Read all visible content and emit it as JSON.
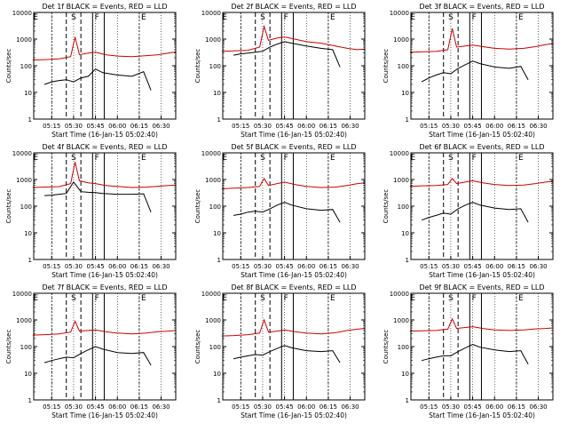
{
  "chart_data": [
    {
      "type": "line",
      "title": "Det 1f BLACK = Events, RED = LLD",
      "xlabel": "Start Time (16-Jan-15 05:02:40)",
      "ylabel": "Counts/sec",
      "ylog": true,
      "ylim": [
        1,
        10000
      ],
      "xlim": [
        "05:02:40",
        "06:40:00"
      ],
      "x_ticks": [
        "05:15",
        "05:30",
        "05:45",
        "06:00",
        "06:15",
        "06:30"
      ],
      "y_ticks": [
        "1",
        "10",
        "100",
        "1000",
        "10000"
      ],
      "region_labels": [
        "E",
        "S",
        "F",
        "E"
      ],
      "series": [
        {
          "name": "RED",
          "color": "#d00000",
          "x": [
            "05:02",
            "05:10",
            "05:20",
            "05:28",
            "05:31",
            "05:34",
            "05:40",
            "05:45",
            "05:52",
            "06:00",
            "06:10",
            "06:20",
            "06:28",
            "06:35",
            "06:40"
          ],
          "y": [
            165,
            170,
            180,
            220,
            1200,
            260,
            300,
            320,
            260,
            230,
            220,
            240,
            260,
            300,
            330
          ]
        },
        {
          "name": "BLACK",
          "color": "#000000",
          "x": [
            "05:10",
            "05:15",
            "05:20",
            "05:25",
            "05:30",
            "05:35",
            "05:40",
            "05:45",
            "05:50",
            "06:00",
            "06:10",
            "06:18",
            "06:23"
          ],
          "y": [
            20,
            25,
            28,
            30,
            25,
            35,
            40,
            75,
            55,
            45,
            40,
            60,
            12
          ]
        }
      ]
    },
    {
      "type": "line",
      "title": "Det 2f BLACK = Events, RED = LLD",
      "xlabel": "Start Time (16-Jan-15 05:02:40)",
      "ylabel": "Counts/sec",
      "ylog": true,
      "ylim": [
        1,
        10000
      ],
      "xlim": [
        "05:02:40",
        "06:40:00"
      ],
      "x_ticks": [
        "05:15",
        "05:30",
        "05:45",
        "06:00",
        "06:15",
        "06:30"
      ],
      "y_ticks": [
        "1",
        "10",
        "100",
        "1000",
        "10000"
      ],
      "region_labels": [
        "E",
        "S",
        "F",
        "E"
      ],
      "series": [
        {
          "name": "RED",
          "color": "#d00000",
          "x": [
            "05:02",
            "05:10",
            "05:20",
            "05:28",
            "05:31",
            "05:34",
            "05:40",
            "05:45",
            "05:52",
            "06:00",
            "06:10",
            "06:20",
            "06:28",
            "06:35",
            "06:40"
          ],
          "y": [
            350,
            360,
            380,
            500,
            3000,
            900,
            1100,
            1200,
            1000,
            800,
            700,
            550,
            450,
            400,
            420
          ]
        },
        {
          "name": "BLACK",
          "color": "#000000",
          "x": [
            "05:10",
            "05:15",
            "05:20",
            "05:25",
            "05:30",
            "05:35",
            "05:40",
            "05:45",
            "05:50",
            "06:00",
            "06:10",
            "06:18",
            "06:23"
          ],
          "y": [
            250,
            280,
            300,
            320,
            350,
            500,
            650,
            800,
            700,
            550,
            450,
            400,
            90
          ]
        }
      ]
    },
    {
      "type": "line",
      "title": "Det 3f BLACK = Events, RED = LLD",
      "xlabel": "Start Time (16-Jan-15 05:02:40)",
      "ylabel": "Counts/sec",
      "ylog": true,
      "ylim": [
        1,
        10000
      ],
      "xlim": [
        "05:02:40",
        "06:40:00"
      ],
      "x_ticks": [
        "05:15",
        "05:30",
        "05:45",
        "06:00",
        "06:15",
        "06:30"
      ],
      "y_ticks": [
        "1",
        "10",
        "100",
        "1000",
        "10000"
      ],
      "region_labels": [
        "E",
        "S",
        "F",
        "E"
      ],
      "series": [
        {
          "name": "RED",
          "color": "#d00000",
          "x": [
            "05:02",
            "05:10",
            "05:20",
            "05:28",
            "05:31",
            "05:34",
            "05:40",
            "05:45",
            "05:52",
            "06:00",
            "06:10",
            "06:20",
            "06:28",
            "06:35",
            "06:40"
          ],
          "y": [
            320,
            330,
            350,
            400,
            2500,
            500,
            550,
            600,
            520,
            450,
            420,
            450,
            520,
            620,
            680
          ]
        },
        {
          "name": "BLACK",
          "color": "#000000",
          "x": [
            "05:10",
            "05:15",
            "05:20",
            "05:25",
            "05:30",
            "05:35",
            "05:40",
            "05:45",
            "05:50",
            "06:00",
            "06:10",
            "06:18",
            "06:23"
          ],
          "y": [
            25,
            35,
            45,
            55,
            50,
            80,
            110,
            150,
            120,
            90,
            80,
            95,
            30
          ]
        }
      ]
    },
    {
      "type": "line",
      "title": "Det 4f BLACK = Events, RED = LLD",
      "xlabel": "Start Time (16-Jan-15 05:02:40)",
      "ylabel": "Counts/sec",
      "ylog": true,
      "ylim": [
        1,
        10000
      ],
      "xlim": [
        "05:02:40",
        "06:40:00"
      ],
      "x_ticks": [
        "05:15",
        "05:30",
        "05:45",
        "06:00",
        "06:15",
        "06:30"
      ],
      "y_ticks": [
        "1",
        "10",
        "100",
        "1000",
        "10000"
      ],
      "region_labels": [
        "E",
        "S",
        "F",
        "E"
      ],
      "series": [
        {
          "name": "RED",
          "color": "#d00000",
          "x": [
            "05:02",
            "05:10",
            "05:20",
            "05:28",
            "05:31",
            "05:34",
            "05:40",
            "05:45",
            "05:52",
            "06:00",
            "06:10",
            "06:20",
            "06:28",
            "06:35",
            "06:40"
          ],
          "y": [
            500,
            520,
            540,
            700,
            4500,
            900,
            750,
            700,
            600,
            550,
            500,
            520,
            560,
            600,
            620
          ]
        },
        {
          "name": "BLACK",
          "color": "#000000",
          "x": [
            "05:10",
            "05:15",
            "05:20",
            "05:25",
            "05:30",
            "05:35",
            "05:40",
            "05:45",
            "05:50",
            "06:00",
            "06:10",
            "06:18",
            "06:23"
          ],
          "y": [
            250,
            260,
            280,
            300,
            800,
            350,
            330,
            320,
            300,
            280,
            280,
            290,
            60
          ]
        }
      ]
    },
    {
      "type": "line",
      "title": "Det 5f BLACK = Events, RED = LLD",
      "xlabel": "Start Time (16-Jan-15 05:02:40)",
      "ylabel": "Counts/sec",
      "ylog": true,
      "ylim": [
        1,
        10000
      ],
      "xlim": [
        "05:02:40",
        "06:40:00"
      ],
      "x_ticks": [
        "05:15",
        "05:30",
        "05:45",
        "06:00",
        "06:15",
        "06:30"
      ],
      "y_ticks": [
        "1",
        "10",
        "100",
        "1000",
        "10000"
      ],
      "region_labels": [
        "E",
        "S",
        "F",
        "E"
      ],
      "series": [
        {
          "name": "RED",
          "color": "#d00000",
          "x": [
            "05:02",
            "05:10",
            "05:20",
            "05:28",
            "05:31",
            "05:34",
            "05:40",
            "05:45",
            "05:52",
            "06:00",
            "06:10",
            "06:20",
            "06:28",
            "06:35",
            "06:40"
          ],
          "y": [
            450,
            470,
            500,
            550,
            1100,
            600,
            700,
            800,
            650,
            550,
            500,
            520,
            600,
            700,
            750
          ]
        },
        {
          "name": "BLACK",
          "color": "#000000",
          "x": [
            "05:10",
            "05:15",
            "05:20",
            "05:25",
            "05:30",
            "05:35",
            "05:40",
            "05:45",
            "05:50",
            "06:00",
            "06:10",
            "06:18",
            "06:23"
          ],
          "y": [
            45,
            50,
            60,
            65,
            60,
            80,
            110,
            140,
            110,
            80,
            70,
            75,
            25
          ]
        }
      ]
    },
    {
      "type": "line",
      "title": "Det 6f BLACK = Events, RED = LLD",
      "xlabel": "Start Time (16-Jan-15 05:02:40)",
      "ylabel": "Counts/sec",
      "ylog": true,
      "ylim": [
        1,
        10000
      ],
      "xlim": [
        "05:02:40",
        "06:40:00"
      ],
      "x_ticks": [
        "05:15",
        "05:30",
        "05:45",
        "06:00",
        "06:15",
        "06:30"
      ],
      "y_ticks": [
        "1",
        "10",
        "100",
        "1000",
        "10000"
      ],
      "region_labels": [
        "E",
        "S",
        "F",
        "E"
      ],
      "series": [
        {
          "name": "RED",
          "color": "#d00000",
          "x": [
            "05:02",
            "05:10",
            "05:20",
            "05:28",
            "05:31",
            "05:34",
            "05:40",
            "05:45",
            "05:52",
            "06:00",
            "06:10",
            "06:20",
            "06:28",
            "06:35",
            "06:40"
          ],
          "y": [
            550,
            580,
            600,
            650,
            1100,
            700,
            800,
            900,
            750,
            650,
            600,
            620,
            700,
            800,
            850
          ]
        },
        {
          "name": "BLACK",
          "color": "#000000",
          "x": [
            "05:10",
            "05:15",
            "05:20",
            "05:25",
            "05:30",
            "05:35",
            "05:40",
            "05:45",
            "05:50",
            "06:00",
            "06:10",
            "06:18",
            "06:23"
          ],
          "y": [
            30,
            38,
            45,
            55,
            50,
            80,
            110,
            140,
            110,
            85,
            75,
            80,
            25
          ]
        }
      ]
    },
    {
      "type": "line",
      "title": "Det 7f BLACK = Events, RED = LLD",
      "xlabel": "Start Time (16-Jan-15 05:02:40)",
      "ylabel": "Counts/sec",
      "ylog": true,
      "ylim": [
        1,
        10000
      ],
      "xlim": [
        "05:02:40",
        "06:40:00"
      ],
      "x_ticks": [
        "05:15",
        "05:30",
        "05:45",
        "06:00",
        "06:15",
        "06:30"
      ],
      "y_ticks": [
        "1",
        "10",
        "100",
        "1000",
        "10000"
      ],
      "region_labels": [
        "E",
        "S",
        "F",
        "E"
      ],
      "series": [
        {
          "name": "RED",
          "color": "#d00000",
          "x": [
            "05:02",
            "05:10",
            "05:20",
            "05:28",
            "05:31",
            "05:34",
            "05:40",
            "05:45",
            "05:52",
            "06:00",
            "06:10",
            "06:20",
            "06:28",
            "06:35",
            "06:40"
          ],
          "y": [
            270,
            280,
            300,
            350,
            900,
            380,
            400,
            420,
            360,
            320,
            300,
            320,
            360,
            380,
            400
          ]
        },
        {
          "name": "BLACK",
          "color": "#000000",
          "x": [
            "05:10",
            "05:15",
            "05:20",
            "05:25",
            "05:30",
            "05:35",
            "05:40",
            "05:45",
            "05:50",
            "06:00",
            "06:10",
            "06:18",
            "06:23"
          ],
          "y": [
            25,
            30,
            35,
            40,
            38,
            55,
            75,
            100,
            80,
            60,
            55,
            60,
            20
          ]
        }
      ]
    },
    {
      "type": "line",
      "title": "Det 8f BLACK = Events, RED = LLD",
      "xlabel": "Start Time (16-Jan-15 05:02:40)",
      "ylabel": "Counts/sec",
      "ylog": true,
      "ylim": [
        1,
        10000
      ],
      "xlim": [
        "05:02:40",
        "06:40:00"
      ],
      "x_ticks": [
        "05:15",
        "05:30",
        "05:45",
        "06:00",
        "06:15",
        "06:30"
      ],
      "y_ticks": [
        "1",
        "10",
        "100",
        "1000",
        "10000"
      ],
      "region_labels": [
        "E",
        "S",
        "F",
        "E"
      ],
      "series": [
        {
          "name": "RED",
          "color": "#d00000",
          "x": [
            "05:02",
            "05:10",
            "05:20",
            "05:28",
            "05:31",
            "05:34",
            "05:40",
            "05:45",
            "05:52",
            "06:00",
            "06:10",
            "06:20",
            "06:28",
            "06:35",
            "06:40"
          ],
          "y": [
            250,
            260,
            280,
            320,
            1000,
            350,
            380,
            420,
            360,
            320,
            300,
            330,
            400,
            450,
            480
          ]
        },
        {
          "name": "BLACK",
          "color": "#000000",
          "x": [
            "05:10",
            "05:15",
            "05:20",
            "05:25",
            "05:30",
            "05:35",
            "05:40",
            "05:45",
            "05:50",
            "06:00",
            "06:10",
            "06:18",
            "06:23"
          ],
          "y": [
            35,
            40,
            45,
            50,
            48,
            65,
            85,
            110,
            90,
            70,
            65,
            70,
            25
          ]
        }
      ]
    },
    {
      "type": "line",
      "title": "Det 9f BLACK = Events, RED = LLD",
      "xlabel": "Start Time (16-Jan-15 05:02:40)",
      "ylabel": "Counts/sec",
      "ylog": true,
      "ylim": [
        1,
        10000
      ],
      "xlim": [
        "05:02:40",
        "06:40:00"
      ],
      "x_ticks": [
        "05:15",
        "05:30",
        "05:45",
        "06:00",
        "06:15",
        "06:30"
      ],
      "y_ticks": [
        "1",
        "10",
        "100",
        "1000",
        "10000"
      ],
      "region_labels": [
        "E",
        "S",
        "F",
        "E"
      ],
      "series": [
        {
          "name": "RED",
          "color": "#d00000",
          "x": [
            "05:02",
            "05:10",
            "05:20",
            "05:28",
            "05:31",
            "05:34",
            "05:40",
            "05:45",
            "05:52",
            "06:00",
            "06:10",
            "06:20",
            "06:28",
            "06:35",
            "06:40"
          ],
          "y": [
            380,
            390,
            400,
            450,
            1100,
            480,
            520,
            560,
            480,
            420,
            400,
            420,
            460,
            480,
            500
          ]
        },
        {
          "name": "BLACK",
          "color": "#000000",
          "x": [
            "05:10",
            "05:15",
            "05:20",
            "05:25",
            "05:30",
            "05:35",
            "05:40",
            "05:45",
            "05:50",
            "06:00",
            "06:10",
            "06:18",
            "06:23"
          ],
          "y": [
            30,
            35,
            40,
            45,
            45,
            65,
            90,
            120,
            95,
            75,
            65,
            70,
            22
          ]
        }
      ]
    }
  ]
}
